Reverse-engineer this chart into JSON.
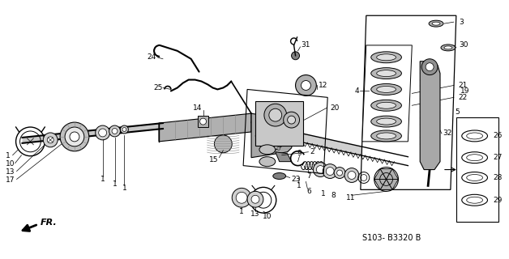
{
  "diagram_code": "S103- B3320 B",
  "bg_color": "#ffffff",
  "figsize": [
    6.28,
    3.2
  ],
  "dpi": 100
}
